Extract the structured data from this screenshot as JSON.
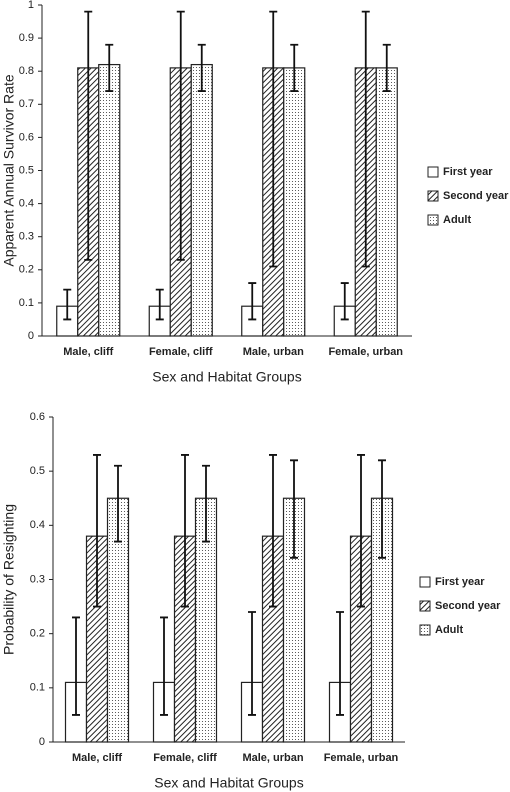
{
  "chart_data": [
    {
      "type": "bar",
      "ylabel": "Apparent Annual Survivor Rate",
      "xlabel": "Sex and Habitat Groups",
      "categories": [
        "Male, cliff",
        "Female, cliff",
        "Male, urban",
        "Female, urban"
      ],
      "ylim": [
        0,
        1
      ],
      "yticks": [
        0,
        0.1,
        0.2,
        0.3,
        0.4,
        0.5,
        0.6,
        0.7,
        0.8,
        0.9,
        1
      ],
      "series": [
        {
          "name": "First year",
          "color": "#ffffff",
          "pattern": "none",
          "values": [
            0.09,
            0.09,
            0.09,
            0.09
          ],
          "lower": [
            0.05,
            0.05,
            0.05,
            0.05
          ],
          "upper": [
            0.14,
            0.14,
            0.16,
            0.16
          ]
        },
        {
          "name": "Second year",
          "color": "#ffffff",
          "pattern": "hatch",
          "values": [
            0.81,
            0.81,
            0.81,
            0.81
          ],
          "lower": [
            0.23,
            0.23,
            0.21,
            0.21
          ],
          "upper": [
            0.98,
            0.98,
            0.98,
            0.98
          ]
        },
        {
          "name": "Adult",
          "color": "#ffffff",
          "pattern": "dots",
          "values": [
            0.82,
            0.82,
            0.81,
            0.81
          ],
          "lower": [
            0.74,
            0.74,
            0.74,
            0.74
          ],
          "upper": [
            0.88,
            0.88,
            0.88,
            0.88
          ]
        }
      ]
    },
    {
      "type": "bar",
      "ylabel": "Probability of Resighting",
      "xlabel": "Sex and Habitat Groups",
      "categories": [
        "Male, cliff",
        "Female, cliff",
        "Male, urban",
        "Female, urban"
      ],
      "ylim": [
        0,
        0.6
      ],
      "yticks": [
        0,
        0.1,
        0.2,
        0.3,
        0.4,
        0.5,
        0.6
      ],
      "series": [
        {
          "name": "First year",
          "color": "#ffffff",
          "pattern": "none",
          "values": [
            0.11,
            0.11,
            0.11,
            0.11
          ],
          "lower": [
            0.05,
            0.05,
            0.05,
            0.05
          ],
          "upper": [
            0.23,
            0.23,
            0.24,
            0.24
          ]
        },
        {
          "name": "Second year",
          "color": "#ffffff",
          "pattern": "hatch",
          "values": [
            0.38,
            0.38,
            0.38,
            0.38
          ],
          "lower": [
            0.25,
            0.25,
            0.25,
            0.25
          ],
          "upper": [
            0.53,
            0.53,
            0.53,
            0.53
          ]
        },
        {
          "name": "Adult",
          "color": "#ffffff",
          "pattern": "dots",
          "values": [
            0.45,
            0.45,
            0.45,
            0.45
          ],
          "lower": [
            0.37,
            0.37,
            0.34,
            0.34
          ],
          "upper": [
            0.51,
            0.51,
            0.52,
            0.52
          ]
        }
      ]
    }
  ]
}
